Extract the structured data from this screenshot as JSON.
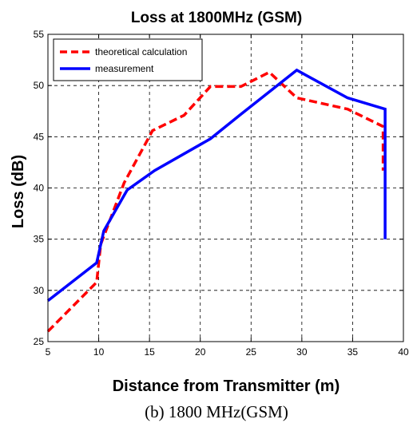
{
  "chart_data": {
    "type": "line",
    "title": "Loss at 1800MHz (GSM)",
    "xlabel": "Distance from Transmitter (m)",
    "ylabel": "Loss (dB)",
    "xlim": [
      5,
      40
    ],
    "ylim": [
      25,
      55
    ],
    "xticks": [
      "5",
      "10",
      "15",
      "20",
      "25",
      "30",
      "35",
      "40"
    ],
    "yticks": [
      "25",
      "30",
      "35",
      "40",
      "45",
      "50",
      "55"
    ],
    "grid": true,
    "legend_position": "top-left",
    "series": [
      {
        "name": "theoretical calculation",
        "color": "#ff0000",
        "style": "dashed",
        "x": [
          5.0,
          9.8,
          10.2,
          12.5,
          15.3,
          18.4,
          21.0,
          24.0,
          26.8,
          29.5,
          34.5,
          38.0,
          38.0
        ],
        "y": [
          26.0,
          30.8,
          34.5,
          40.5,
          45.6,
          47.1,
          49.9,
          49.9,
          51.3,
          48.8,
          47.7,
          46.0,
          41.7
        ]
      },
      {
        "name": "measurement",
        "color": "#0000ff",
        "style": "solid",
        "x": [
          5.0,
          9.8,
          10.5,
          12.8,
          15.5,
          21.0,
          24.0,
          29.5,
          34.5,
          38.2,
          38.2
        ],
        "y": [
          29.0,
          32.7,
          35.8,
          39.8,
          41.7,
          44.8,
          47.2,
          51.5,
          48.8,
          47.7,
          35.0
        ]
      }
    ]
  },
  "caption": "(b) 1800 MHz(GSM)"
}
